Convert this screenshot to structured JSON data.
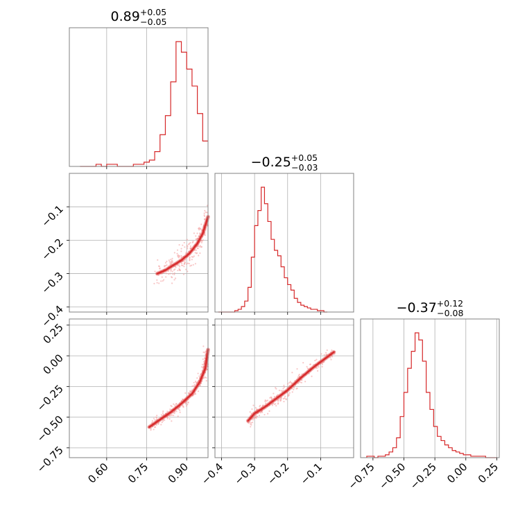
{
  "chart_data": [
    {
      "panel": "hist-0",
      "type": "histogram",
      "title": {
        "value": "0.89",
        "plus": "+0.05",
        "minus": "−0.05"
      },
      "xlim": [
        0.46,
        0.98
      ],
      "x_ticks": [
        0.6,
        0.75,
        0.9
      ],
      "bins": [
        0.5,
        0.52,
        0.54,
        0.56,
        0.58,
        0.6,
        0.62,
        0.64,
        0.66,
        0.68,
        0.7,
        0.72,
        0.74,
        0.76,
        0.78,
        0.8,
        0.82,
        0.84,
        0.86,
        0.88,
        0.9,
        0.92,
        0.94,
        0.96
      ],
      "counts": [
        0,
        0,
        0,
        1,
        0,
        1,
        1,
        0,
        0,
        0,
        1,
        1,
        2,
        3,
        7,
        15,
        24,
        40,
        59,
        54,
        46,
        38,
        25,
        12
      ]
    },
    {
      "panel": "hist-1",
      "type": "histogram",
      "title": {
        "value": "−0.25",
        "plus": "+0.05",
        "minus": "−0.03"
      },
      "xlim": [
        -0.42,
        0.0
      ],
      "x_ticks": [
        -0.4,
        -0.3,
        -0.2,
        -0.1
      ],
      "bins": [
        -0.41,
        -0.4,
        -0.39,
        -0.38,
        -0.37,
        -0.36,
        -0.35,
        -0.34,
        -0.33,
        -0.32,
        -0.31,
        -0.3,
        -0.29,
        -0.28,
        -0.27,
        -0.26,
        -0.25,
        -0.24,
        -0.23,
        -0.22,
        -0.21,
        -0.2,
        -0.19,
        -0.18,
        -0.17,
        -0.16,
        -0.15,
        -0.14,
        -0.13,
        -0.12,
        -0.11,
        -0.1,
        -0.09
      ],
      "counts": [
        0,
        0,
        0,
        0,
        0,
        1,
        2,
        4,
        8,
        18,
        40,
        63,
        74,
        91,
        79,
        66,
        53,
        45,
        41,
        33,
        25,
        20,
        16,
        10,
        7,
        5,
        4,
        3,
        2,
        2,
        1,
        1,
        0
      ]
    },
    {
      "panel": "hist-2",
      "type": "histogram",
      "title": {
        "value": "−0.37",
        "plus": "+0.12",
        "minus": "−0.08"
      },
      "xlim": [
        -0.85,
        0.27
      ],
      "x_ticks": [
        -0.75,
        -0.5,
        -0.25,
        0.0,
        0.25
      ],
      "bins": [
        -0.8,
        -0.77,
        -0.74,
        -0.71,
        -0.68,
        -0.65,
        -0.62,
        -0.59,
        -0.56,
        -0.53,
        -0.5,
        -0.47,
        -0.44,
        -0.41,
        -0.38,
        -0.35,
        -0.32,
        -0.29,
        -0.26,
        -0.23,
        -0.2,
        -0.17,
        -0.14,
        -0.11,
        -0.08,
        -0.05,
        -0.02,
        0.01,
        0.04,
        0.07,
        0.1,
        0.13,
        0.16,
        0.19,
        0.22
      ],
      "counts": [
        1,
        1,
        0,
        1,
        1,
        2,
        4,
        7,
        14,
        29,
        46,
        63,
        75,
        88,
        83,
        68,
        46,
        34,
        22,
        15,
        12,
        9,
        7,
        5,
        4,
        3,
        2,
        2,
        1,
        1,
        1,
        1,
        0,
        0,
        0
      ]
    },
    {
      "panel": "contour-1-0",
      "type": "scatter",
      "xlim": [
        0.46,
        0.98
      ],
      "ylim": [
        -0.415,
        0.0
      ],
      "x_ticks": [
        0.6,
        0.75,
        0.9
      ],
      "y_ticks": [
        -0.4,
        -0.3,
        -0.2,
        -0.1
      ],
      "y_tick_labels": [
        "−0.4",
        "−0.3",
        "−0.2",
        "−0.1"
      ],
      "ridge": [
        [
          0.79,
          -0.3
        ],
        [
          0.82,
          -0.29
        ],
        [
          0.85,
          -0.275
        ],
        [
          0.88,
          -0.26
        ],
        [
          0.91,
          -0.24
        ],
        [
          0.94,
          -0.21
        ],
        [
          0.96,
          -0.18
        ],
        [
          0.98,
          -0.13
        ]
      ],
      "band_width": 0.02
    },
    {
      "panel": "contour-2-0",
      "type": "scatter",
      "xlim": [
        0.46,
        0.98
      ],
      "ylim": [
        -0.83,
        0.3
      ],
      "x_ticks": [
        0.6,
        0.75,
        0.9
      ],
      "x_tick_labels": [
        "0.60",
        "0.75",
        "0.90"
      ],
      "y_ticks": [
        -0.75,
        -0.5,
        -0.25,
        0.0,
        0.25
      ],
      "y_tick_labels": [
        "−0.75",
        "−0.50",
        "−0.25",
        "0.00",
        "0.25"
      ],
      "ridge": [
        [
          0.76,
          -0.58
        ],
        [
          0.8,
          -0.52
        ],
        [
          0.84,
          -0.46
        ],
        [
          0.88,
          -0.39
        ],
        [
          0.92,
          -0.31
        ],
        [
          0.95,
          -0.21
        ],
        [
          0.97,
          -0.1
        ],
        [
          0.98,
          0.05
        ]
      ],
      "band_width": 0.025
    },
    {
      "panel": "contour-2-1",
      "type": "scatter",
      "xlim": [
        -0.42,
        0.0
      ],
      "ylim": [
        -0.83,
        0.3
      ],
      "x_ticks": [
        -0.4,
        -0.3,
        -0.2,
        -0.1
      ],
      "x_tick_labels": [
        "−0.4",
        "−0.3",
        "−0.2",
        "−0.1"
      ],
      "y_ticks": [
        -0.75,
        -0.5,
        -0.25,
        0.0,
        0.25
      ],
      "ridge": [
        [
          -0.32,
          -0.53
        ],
        [
          -0.3,
          -0.47
        ],
        [
          -0.27,
          -0.42
        ],
        [
          -0.24,
          -0.36
        ],
        [
          -0.2,
          -0.28
        ],
        [
          -0.16,
          -0.18
        ],
        [
          -0.12,
          -0.09
        ],
        [
          -0.06,
          0.03
        ]
      ],
      "band_width": 0.03
    }
  ],
  "colors": {
    "line": "#d62728",
    "scatter": "#f4a3a3",
    "grid": "#b0b0b0",
    "frame": "#808080"
  }
}
